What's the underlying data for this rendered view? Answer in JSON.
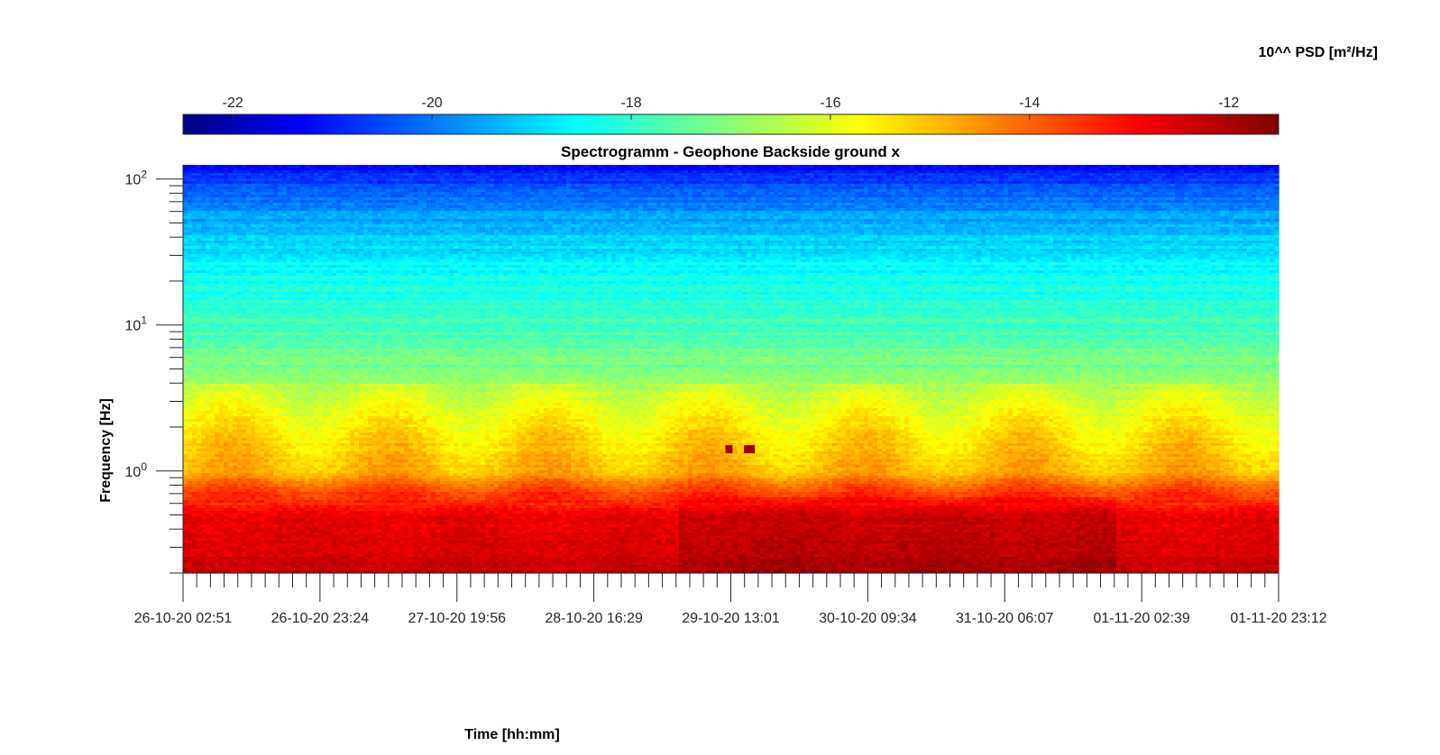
{
  "chart_data": {
    "type": "heatmap",
    "title": "Spectrogramm - Geophone Backside ground x",
    "xlabel": "Time [hh:mm]",
    "ylabel": "Frequency [Hz]",
    "colorbar_label": "10^^ PSD [m²/Hz]",
    "yscale": "log",
    "ylim": [
      0.2,
      125
    ],
    "y_ticks": [
      {
        "value": 1,
        "base": "10",
        "exp": "0"
      },
      {
        "value": 10,
        "base": "10",
        "exp": "1"
      },
      {
        "value": 100,
        "base": "10",
        "exp": "2"
      }
    ],
    "x_tick_labels": [
      "26-10-20 02:51",
      "26-10-20 23:24",
      "27-10-20 19:56",
      "28-10-20 16:29",
      "29-10-20 13:01",
      "30-10-20 09:34",
      "31-10-20 06:07",
      "01-11-20 02:39",
      "01-11-20 23:12"
    ],
    "colorbar": {
      "range": [
        -22.5,
        -11.5
      ],
      "ticks": [
        -22,
        -20,
        -18,
        -16,
        -14,
        -12
      ],
      "tick_labels": [
        "-22",
        "-20",
        "-18",
        "-16",
        "-14",
        "-12"
      ],
      "colormap": "jet"
    },
    "colormap_stops": [
      "#000080",
      "#0000ff",
      "#00ffff",
      "#ffff00",
      "#ff0000",
      "#800000"
    ],
    "profile": {
      "freq_hz": [
        0.2,
        0.5,
        0.7,
        1.0,
        3,
        5,
        10,
        30,
        60,
        100,
        125
      ],
      "log10_psd": [
        -12.2,
        -12.6,
        -13.8,
        -15.2,
        -16.3,
        -17.0,
        -17.6,
        -18.6,
        -19.5,
        -20.6,
        -21.2
      ]
    },
    "events": [
      {
        "label": "",
        "freq_hz": 1.4,
        "log10_psd": -11.8
      }
    ]
  }
}
